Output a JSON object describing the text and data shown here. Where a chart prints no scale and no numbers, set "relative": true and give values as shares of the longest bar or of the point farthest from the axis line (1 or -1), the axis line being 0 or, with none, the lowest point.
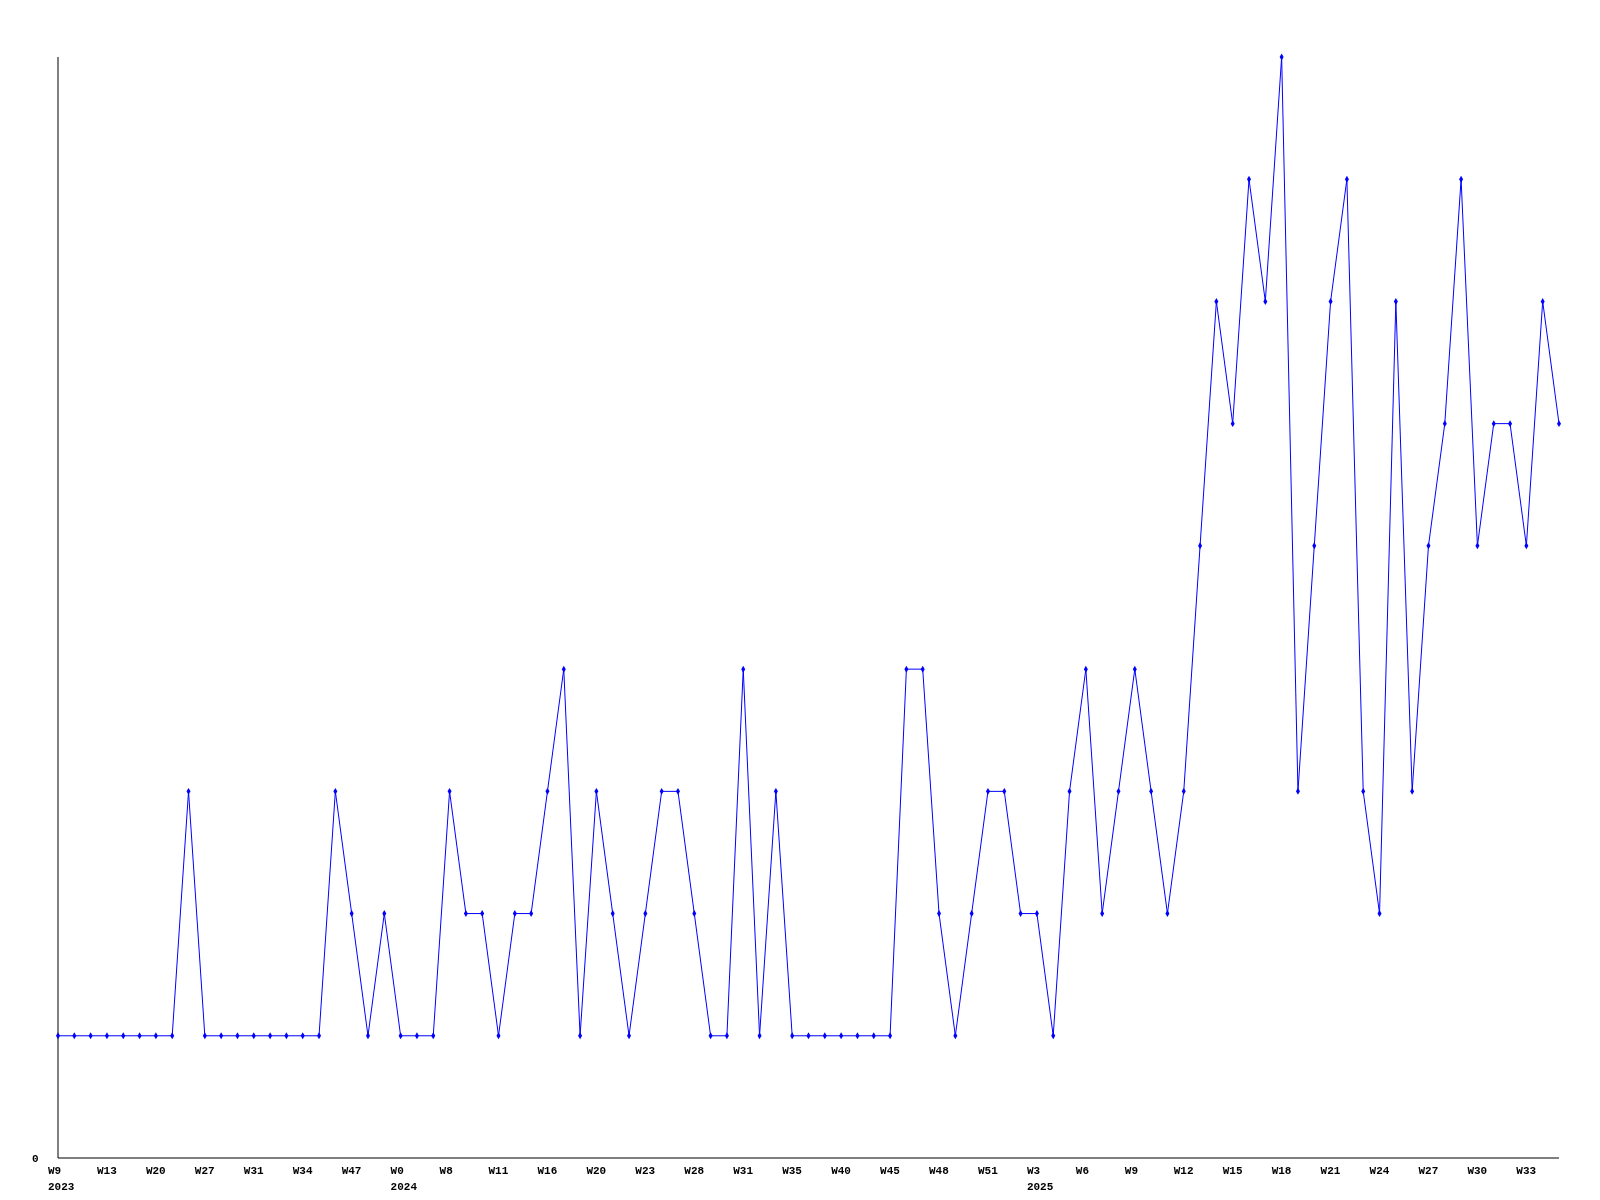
{
  "chart_data": {
    "type": "line",
    "relative": true,
    "marker": "diamond",
    "annotations": [
      "0"
    ],
    "categories": [
      "W9\n2023",
      null,
      null,
      "W13",
      null,
      null,
      "W20",
      null,
      null,
      "W27",
      null,
      null,
      "W31",
      null,
      null,
      "W34",
      null,
      null,
      "W47",
      null,
      null,
      "W0\n2024",
      null,
      null,
      "W8",
      null,
      null,
      "W11",
      null,
      null,
      "W16",
      null,
      null,
      "W20",
      null,
      null,
      "W23",
      null,
      null,
      "W28",
      null,
      null,
      "W31",
      null,
      null,
      "W35",
      null,
      null,
      "W40",
      null,
      null,
      "W45",
      null,
      null,
      "W48",
      null,
      null,
      "W51",
      null,
      null,
      "W3\n2025",
      null,
      null,
      "W6",
      null,
      null,
      "W9",
      null,
      null,
      "W12",
      null,
      null,
      "W15",
      null,
      null,
      "W18",
      null,
      null,
      "W21",
      null,
      null,
      "W24",
      null,
      null,
      "W27",
      null,
      null,
      "W30",
      null,
      null,
      "W33",
      null,
      null
    ],
    "series": [
      {
        "color": "#0000ff",
        "values": [
          0.111,
          0.111,
          0.111,
          0.111,
          0.111,
          0.111,
          0.111,
          0.111,
          0.333,
          0.111,
          0.111,
          0.111,
          0.111,
          0.111,
          0.111,
          0.111,
          0.111,
          0.333,
          0.222,
          0.111,
          0.222,
          0.111,
          0.111,
          0.111,
          0.333,
          0.222,
          0.222,
          0.111,
          0.222,
          0.222,
          0.333,
          0.444,
          0.111,
          0.333,
          0.222,
          0.111,
          0.222,
          0.333,
          0.333,
          0.222,
          0.111,
          0.111,
          0.444,
          0.111,
          0.333,
          0.111,
          0.111,
          0.111,
          0.111,
          0.111,
          0.111,
          0.111,
          0.444,
          0.444,
          0.222,
          0.111,
          0.222,
          0.333,
          0.333,
          0.222,
          0.222,
          0.111,
          0.333,
          0.444,
          0.222,
          0.333,
          0.444,
          0.333,
          0.222,
          0.333,
          0.556,
          0.778,
          0.667,
          0.889,
          0.778,
          1,
          0.333,
          0.556,
          0.778,
          0.889,
          0.333,
          0.222,
          0.778,
          0.333,
          0.556,
          0.667,
          0.889,
          0.556,
          0.667,
          0.667,
          0.556,
          0.778,
          0.667
        ]
      }
    ]
  }
}
